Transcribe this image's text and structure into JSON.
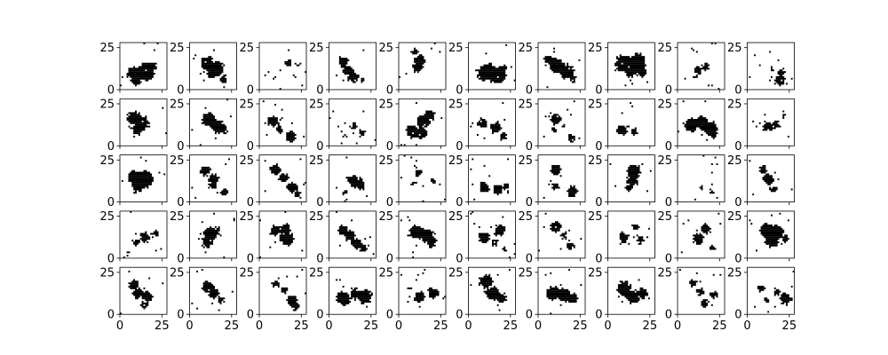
{
  "chart_data": {
    "type": "heatmap",
    "layout": {
      "rows": 5,
      "cols": 10
    },
    "image_size": [
      28,
      28
    ],
    "xlim": [
      0,
      28
    ],
    "ylim": [
      0,
      28
    ],
    "x_ticks": [
      0,
      25
    ],
    "y_ticks": [
      0,
      25
    ],
    "origin": "lower",
    "colormap": {
      "low": "#ffffff",
      "high": "#000000"
    },
    "panels": [
      {
        "blobs": [
          [
            8,
            9,
            4
          ],
          [
            15,
            10,
            5
          ],
          [
            9,
            5,
            3
          ],
          [
            18,
            13,
            3
          ]
        ],
        "noise": 6
      },
      {
        "blobs": [
          [
            10,
            15,
            4
          ],
          [
            16,
            12,
            4
          ],
          [
            13,
            9,
            3
          ],
          [
            20,
            6,
            2
          ]
        ],
        "noise": 8
      },
      {
        "blobs": [
          [
            17,
            15,
            2
          ],
          [
            9,
            7,
            1
          ],
          [
            22,
            14,
            1
          ]
        ],
        "noise": 10
      },
      {
        "blobs": [
          [
            8,
            16,
            3
          ],
          [
            11,
            11,
            3
          ],
          [
            14,
            7,
            3
          ],
          [
            19,
            5,
            1
          ]
        ],
        "noise": 5
      },
      {
        "blobs": [
          [
            12,
            17,
            3
          ],
          [
            11,
            13,
            3
          ],
          [
            9,
            22,
            2
          ]
        ],
        "noise": 5
      },
      {
        "blobs": [
          [
            9,
            9,
            4
          ],
          [
            17,
            8,
            5
          ],
          [
            12,
            12,
            3
          ],
          [
            20,
            12,
            2
          ]
        ],
        "noise": 6
      },
      {
        "blobs": [
          [
            6,
            17,
            3
          ],
          [
            11,
            14,
            4
          ],
          [
            17,
            10,
            4
          ],
          [
            20,
            6,
            2
          ]
        ],
        "noise": 7
      },
      {
        "blobs": [
          [
            9,
            15,
            5
          ],
          [
            17,
            16,
            5
          ],
          [
            13,
            11,
            4
          ],
          [
            20,
            10,
            3
          ]
        ],
        "noise": 8
      },
      {
        "blobs": [
          [
            12,
            11,
            2
          ],
          [
            16,
            13,
            2
          ],
          [
            10,
            7,
            1
          ]
        ],
        "noise": 10
      },
      {
        "blobs": [
          [
            19,
            5,
            3
          ],
          [
            20,
            10,
            2
          ],
          [
            7,
            14,
            1
          ],
          [
            14,
            12,
            1
          ]
        ],
        "noise": 9
      },
      {
        "blobs": [
          [
            8,
            16,
            4
          ],
          [
            13,
            13,
            4
          ],
          [
            10,
            9,
            3
          ]
        ],
        "noise": 8
      },
      {
        "blobs": [
          [
            11,
            15,
            4
          ],
          [
            16,
            11,
            4
          ],
          [
            20,
            9,
            2
          ]
        ],
        "noise": 6
      },
      {
        "blobs": [
          [
            8,
            14,
            3
          ],
          [
            12,
            9,
            2
          ],
          [
            18,
            5,
            3
          ]
        ],
        "noise": 9
      },
      {
        "blobs": [
          [
            14,
            11,
            2
          ],
          [
            19,
            7,
            2
          ],
          [
            9,
            6,
            1
          ]
        ],
        "noise": 11
      },
      {
        "blobs": [
          [
            8,
            8,
            4
          ],
          [
            14,
            14,
            4
          ],
          [
            18,
            18,
            3
          ],
          [
            13,
            7,
            3
          ]
        ],
        "noise": 9
      },
      {
        "blobs": [
          [
            8,
            13,
            3
          ],
          [
            16,
            10,
            3
          ],
          [
            20,
            5,
            2
          ]
        ],
        "noise": 8
      },
      {
        "blobs": [
          [
            10,
            15,
            3
          ],
          [
            9,
            9,
            2
          ],
          [
            19,
            4,
            2
          ],
          [
            15,
            12,
            1
          ]
        ],
        "noise": 8
      },
      {
        "blobs": [
          [
            8,
            9,
            3
          ],
          [
            15,
            8,
            2
          ]
        ],
        "noise": 4
      },
      {
        "blobs": [
          [
            8,
            12,
            4
          ],
          [
            14,
            13,
            4
          ],
          [
            19,
            10,
            4
          ],
          [
            21,
            6,
            2
          ]
        ],
        "noise": 6
      },
      {
        "blobs": [
          [
            12,
            11,
            3
          ],
          [
            17,
            12,
            2
          ],
          [
            21,
            17,
            1
          ]
        ],
        "noise": 8
      },
      {
        "blobs": [
          [
            8,
            14,
            4
          ],
          [
            14,
            13,
            5
          ],
          [
            10,
            9,
            3
          ]
        ],
        "noise": 8
      },
      {
        "blobs": [
          [
            9,
            18,
            3
          ],
          [
            14,
            13,
            3
          ],
          [
            13,
            9,
            2
          ],
          [
            20,
            5,
            2
          ]
        ],
        "noise": 6
      },
      {
        "blobs": [
          [
            9,
            19,
            3
          ],
          [
            14,
            14,
            3
          ],
          [
            19,
            8,
            3
          ],
          [
            22,
            4,
            2
          ]
        ],
        "noise": 6
      },
      {
        "blobs": [
          [
            14,
            12,
            3
          ],
          [
            18,
            10,
            3
          ],
          [
            9,
            5,
            1
          ]
        ],
        "noise": 10
      },
      {
        "blobs": [
          [
            11,
            17,
            2
          ],
          [
            8,
            11,
            1
          ],
          [
            20,
            12,
            1
          ]
        ],
        "noise": 11
      },
      {
        "blobs": [
          [
            9,
            8,
            3
          ],
          [
            17,
            7,
            3
          ],
          [
            22,
            9,
            2
          ]
        ],
        "noise": 10
      },
      {
        "blobs": [
          [
            10,
            19,
            3
          ],
          [
            10,
            9,
            2
          ],
          [
            20,
            6,
            3
          ]
        ],
        "noise": 5
      },
      {
        "blobs": [
          [
            15,
            18,
            4
          ],
          [
            14,
            12,
            3
          ],
          [
            12,
            8,
            2
          ]
        ],
        "noise": 6
      },
      {
        "blobs": [
          [
            14,
            8,
            1
          ],
          [
            20,
            6,
            1
          ]
        ],
        "noise": 8
      },
      {
        "blobs": [
          [
            9,
            19,
            2
          ],
          [
            12,
            13,
            3
          ],
          [
            15,
            7,
            2
          ]
        ],
        "noise": 5
      },
      {
        "blobs": [
          [
            14,
            12,
            3
          ],
          [
            20,
            14,
            2
          ],
          [
            9,
            9,
            2
          ]
        ],
        "noise": 10
      },
      {
        "blobs": [
          [
            12,
            14,
            4
          ],
          [
            10,
            9,
            3
          ],
          [
            16,
            16,
            2
          ]
        ],
        "noise": 10
      },
      {
        "blobs": [
          [
            9,
            16,
            3
          ],
          [
            15,
            17,
            3
          ],
          [
            16,
            11,
            4
          ]
        ],
        "noise": 8
      },
      {
        "blobs": [
          [
            8,
            16,
            3
          ],
          [
            12,
            13,
            3
          ],
          [
            16,
            8,
            3
          ],
          [
            20,
            5,
            2
          ]
        ],
        "noise": 8
      },
      {
        "blobs": [
          [
            10,
            15,
            4
          ],
          [
            16,
            13,
            4
          ],
          [
            19,
            9,
            3
          ]
        ],
        "noise": 9
      },
      {
        "blobs": [
          [
            9,
            12,
            3
          ],
          [
            18,
            16,
            3
          ],
          [
            15,
            9,
            2
          ],
          [
            21,
            5,
            1
          ]
        ],
        "noise": 10
      },
      {
        "blobs": [
          [
            10,
            18,
            3
          ],
          [
            15,
            13,
            2
          ],
          [
            19,
            7,
            2
          ]
        ],
        "noise": 9
      },
      {
        "blobs": [
          [
            9,
            12,
            3
          ],
          [
            16,
            18,
            2
          ],
          [
            19,
            10,
            2
          ]
        ],
        "noise": 7
      },
      {
        "blobs": [
          [
            16,
            17,
            3
          ],
          [
            12,
            11,
            3
          ],
          [
            20,
            6,
            2
          ]
        ],
        "noise": 8
      },
      {
        "blobs": [
          [
            11,
            16,
            4
          ],
          [
            17,
            15,
            4
          ],
          [
            14,
            10,
            4
          ],
          [
            22,
            11,
            2
          ]
        ],
        "noise": 8
      },
      {
        "blobs": [
          [
            8,
            17,
            3
          ],
          [
            10,
            12,
            3
          ],
          [
            16,
            10,
            3
          ],
          [
            14,
            5,
            2
          ]
        ],
        "noise": 6
      },
      {
        "blobs": [
          [
            10,
            16,
            3
          ],
          [
            14,
            12,
            3
          ],
          [
            18,
            8,
            2
          ]
        ],
        "noise": 9
      },
      {
        "blobs": [
          [
            9,
            18,
            2
          ],
          [
            14,
            14,
            2
          ],
          [
            19,
            8,
            3
          ],
          [
            21,
            4,
            2
          ]
        ],
        "noise": 6
      },
      {
        "blobs": [
          [
            8,
            9,
            4
          ],
          [
            15,
            12,
            3
          ],
          [
            21,
            10,
            4
          ]
        ],
        "noise": 5
      },
      {
        "blobs": [
          [
            12,
            10,
            3
          ],
          [
            20,
            12,
            3
          ],
          [
            6,
            15,
            1
          ]
        ],
        "noise": 10
      },
      {
        "blobs": [
          [
            10,
            19,
            4
          ],
          [
            14,
            12,
            4
          ],
          [
            19,
            9,
            3
          ]
        ],
        "noise": 6
      },
      {
        "blobs": [
          [
            8,
            12,
            4
          ],
          [
            15,
            11,
            4
          ],
          [
            20,
            9,
            3
          ]
        ],
        "noise": 8
      },
      {
        "blobs": [
          [
            9,
            15,
            4
          ],
          [
            14,
            10,
            4
          ],
          [
            20,
            12,
            3
          ]
        ],
        "noise": 6
      },
      {
        "blobs": [
          [
            9,
            18,
            2
          ],
          [
            13,
            13,
            2
          ],
          [
            16,
            6,
            2
          ],
          [
            21,
            11,
            2
          ]
        ],
        "noise": 8
      },
      {
        "blobs": [
          [
            8,
            15,
            2
          ],
          [
            17,
            13,
            2
          ],
          [
            22,
            9,
            3
          ],
          [
            11,
            8,
            1
          ]
        ],
        "noise": 10
      }
    ]
  }
}
